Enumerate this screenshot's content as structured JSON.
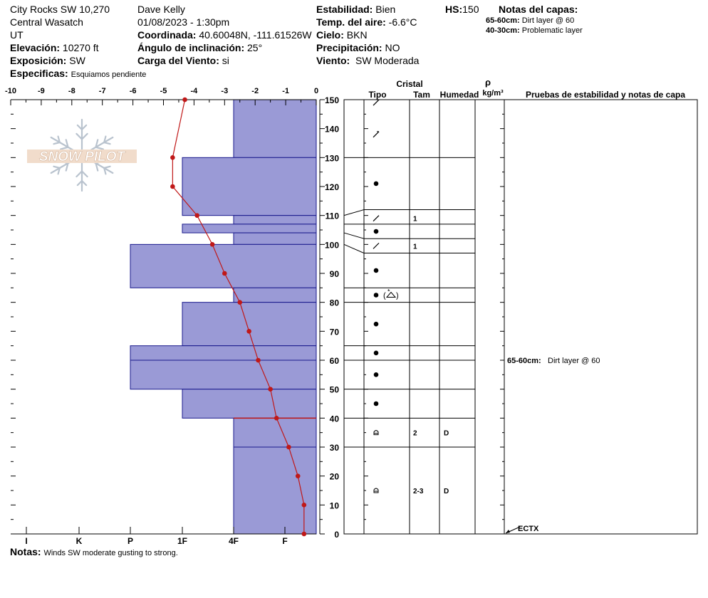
{
  "header": {
    "location": "City Rocks SW 10,270",
    "range": "Central Wasatch",
    "state": "UT",
    "elevation_label": "Elevación:",
    "elevation": "10270 ft",
    "aspect_label": "Exposición:",
    "aspect": "SW",
    "specifics_label": "Especificas:",
    "specifics": "Esquiamos pendiente",
    "observer": "Dave Kelly",
    "datetime": "01/08/2023 - 1:30pm",
    "coord_label": "Coordinada:",
    "coord": "40.60048N, -111.61526W",
    "slope_label": "Ángulo de inclinación:",
    "slope": "25°",
    "wind_load_label": "Carga del Viento:",
    "wind_load": "si",
    "stability_label": "Estabilidad:",
    "stability": "Bien",
    "air_temp_label": "Temp. del aire:",
    "air_temp": "-6.6°C",
    "sky_label": "Cielo:",
    "sky": "BKN",
    "precip_label": "Precipitación:",
    "precip": "NO",
    "wind_label": "Viento:",
    "wind": "SW Moderada",
    "hs_label": "HS:",
    "hs": "150",
    "layer_notes_title": "Notas del capas:",
    "layer_notes": [
      {
        "range": "65-60cm:",
        "text": "Dirt layer @ 60"
      },
      {
        "range": "40-30cm:",
        "text": "Problematic layer"
      }
    ]
  },
  "logo": {
    "text": "SNOW PILOT"
  },
  "table_headers": {
    "crystal": "Cristal",
    "type": "Tipo",
    "size": "Tam",
    "moisture": "Humedad",
    "rho": "ρ",
    "density_unit": "kg/m³",
    "tests": "Pruebas de estabilidad y notas de capa"
  },
  "footer": {
    "notes_label": "Notas:",
    "notes": "Winds SW moderate gusting to strong."
  },
  "colors": {
    "hardness_fill": "#9a9ad6",
    "hardness_stroke": "#1a1a8c",
    "temp_line": "#c01818"
  },
  "chart_data": {
    "type": "bar",
    "temp_axis": {
      "ticks": [
        "-10",
        "-9",
        "-8",
        "-7",
        "-6",
        "-5",
        "-4",
        "-3",
        "-2",
        "-1",
        "0"
      ],
      "range": [
        -10,
        0
      ]
    },
    "hardness_axis": {
      "labels": [
        "I",
        "K",
        "P",
        "1F",
        "4F",
        "F"
      ]
    },
    "depth_axis": {
      "ticks": [
        "150",
        "140",
        "130",
        "120",
        "110",
        "100",
        "90",
        "80",
        "70",
        "60",
        "50",
        "40",
        "30",
        "20",
        "10",
        "0"
      ],
      "range": [
        0,
        150
      ],
      "unit": "cm"
    },
    "hardness_layers": [
      {
        "top": 150,
        "bottom": 130,
        "hardness": "4F"
      },
      {
        "top": 130,
        "bottom": 110,
        "hardness": "1F"
      },
      {
        "top": 110,
        "bottom": 107,
        "hardness": "4F"
      },
      {
        "top": 107,
        "bottom": 104,
        "hardness": "1F"
      },
      {
        "top": 104,
        "bottom": 100,
        "hardness": "4F"
      },
      {
        "top": 100,
        "bottom": 85,
        "hardness": "P"
      },
      {
        "top": 85,
        "bottom": 80,
        "hardness": "4F"
      },
      {
        "top": 80,
        "bottom": 65,
        "hardness": "1F"
      },
      {
        "top": 65,
        "bottom": 60,
        "hardness": "P"
      },
      {
        "top": 60,
        "bottom": 50,
        "hardness": "P"
      },
      {
        "top": 50,
        "bottom": 40,
        "hardness": "1F"
      },
      {
        "top": 40,
        "bottom": 30,
        "hardness": "4F"
      },
      {
        "top": 30,
        "bottom": 0,
        "hardness": "4F"
      }
    ],
    "temperature_profile": [
      {
        "depth": 150,
        "temp": -4.3
      },
      {
        "depth": 130,
        "temp": -4.7
      },
      {
        "depth": 120,
        "temp": -4.7
      },
      {
        "depth": 110,
        "temp": -3.9
      },
      {
        "depth": 100,
        "temp": -3.4
      },
      {
        "depth": 90,
        "temp": -3.0
      },
      {
        "depth": 80,
        "temp": -2.5
      },
      {
        "depth": 70,
        "temp": -2.2
      },
      {
        "depth": 60,
        "temp": -1.9
      },
      {
        "depth": 50,
        "temp": -1.5
      },
      {
        "depth": 40,
        "temp": -1.3
      },
      {
        "depth": 30,
        "temp": -0.9
      },
      {
        "depth": 20,
        "temp": -0.6
      },
      {
        "depth": 10,
        "temp": -0.4
      },
      {
        "depth": 0,
        "temp": -0.4
      }
    ],
    "layers": [
      {
        "top": 150,
        "bottom": 130,
        "grain": "precipitation-particles",
        "size": "",
        "moisture": ""
      },
      {
        "top": 130,
        "bottom": 110,
        "grain": "rounded",
        "size": "",
        "moisture": ""
      },
      {
        "top": 110,
        "bottom": 107,
        "grain": "decomposing-fragmented",
        "size": "1",
        "moisture": ""
      },
      {
        "top": 107,
        "bottom": 104,
        "grain": "rounded",
        "size": "",
        "moisture": ""
      },
      {
        "top": 104,
        "bottom": 100,
        "grain": "decomposing-fragmented",
        "size": "1",
        "moisture": ""
      },
      {
        "top": 100,
        "bottom": 85,
        "grain": "rounded",
        "size": "",
        "moisture": ""
      },
      {
        "top": 85,
        "bottom": 80,
        "grain": "rounded-faceting",
        "size": "",
        "moisture": ""
      },
      {
        "top": 80,
        "bottom": 65,
        "grain": "rounded",
        "size": "",
        "moisture": ""
      },
      {
        "top": 65,
        "bottom": 60,
        "grain": "rounded",
        "size": "",
        "moisture": ""
      },
      {
        "top": 60,
        "bottom": 50,
        "grain": "rounded",
        "size": "",
        "moisture": ""
      },
      {
        "top": 50,
        "bottom": 40,
        "grain": "rounded",
        "size": "",
        "moisture": ""
      },
      {
        "top": 40,
        "bottom": 30,
        "grain": "depth-hoar",
        "size": "2",
        "moisture": "D"
      },
      {
        "top": 30,
        "bottom": 0,
        "grain": "depth-hoar",
        "size": "2-3",
        "moisture": "D"
      }
    ],
    "layer_note_rows": [
      {
        "depth_center": 60,
        "label": "65-60cm:",
        "text": "Dirt layer @ 60"
      }
    ],
    "stability_tests": [
      {
        "depth": 0,
        "label": "ECTX"
      }
    ]
  }
}
